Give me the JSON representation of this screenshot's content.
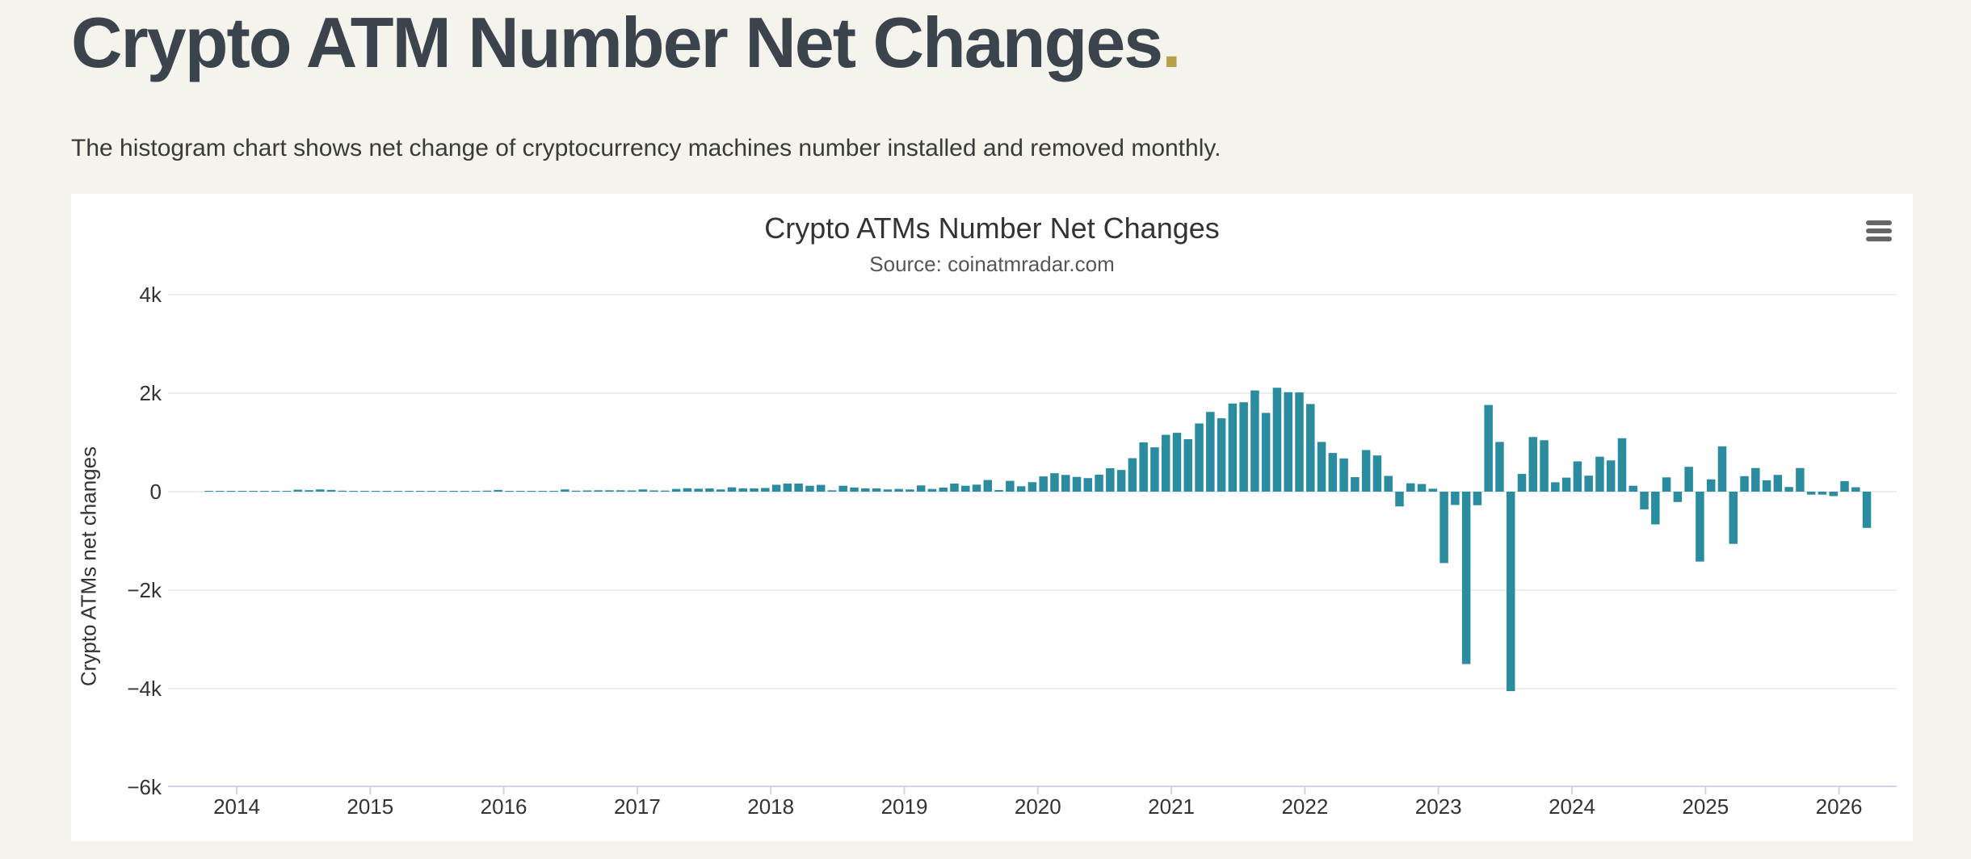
{
  "page": {
    "title": "Crypto ATM Number Net Changes",
    "title_accent_dot": ".",
    "description": "The histogram chart shows net change of cryptocurrency machines number installed and removed monthly."
  },
  "chart": {
    "title": "Crypto ATMs Number Net Changes",
    "subtitle": "Source: coinatmradar.com",
    "y_axis_title": "Crypto ATMs net changes",
    "menu_icon": "hamburger-icon",
    "y_tick_labels": [
      "4k",
      "2k",
      "0",
      "−2k",
      "−4k",
      "−6k"
    ],
    "x_tick_labels": [
      "2014",
      "2015",
      "2016",
      "2017",
      "2018",
      "2019",
      "2020",
      "2021",
      "2022",
      "2023",
      "2024",
      "2025",
      "2026"
    ],
    "colors": {
      "bar": "#2b8ca0",
      "page_background": "#f4f3ec",
      "card_background": "#ffffff",
      "grid_line": "#e6e6e6",
      "axis_line": "#ccd6eb",
      "text": "#333333",
      "subtitle_text": "#555555",
      "title_text": "#3b434c",
      "accent_dot": "#b3a14c",
      "menu_icon": "#666666"
    }
  },
  "chart_data": {
    "type": "bar",
    "title": "Crypto ATMs Number Net Changes",
    "subtitle": "Source: coinatmradar.com",
    "xlabel": "",
    "ylabel": "Crypto ATMs net changes",
    "ylim": [
      -6000,
      4000
    ],
    "y_tick_step": 2000,
    "grid": true,
    "legend": false,
    "frequency": "monthly",
    "start_month": "2013-10",
    "end_month": "2026-03",
    "x_year_ticks": [
      2014,
      2015,
      2016,
      2017,
      2018,
      2019,
      2020,
      2021,
      2022,
      2023,
      2024,
      2025,
      2026
    ],
    "values": [
      2,
      4,
      6,
      8,
      10,
      12,
      14,
      12,
      40,
      30,
      45,
      35,
      20,
      15,
      12,
      10,
      8,
      6,
      8,
      10,
      12,
      10,
      8,
      10,
      12,
      20,
      35,
      10,
      8,
      10,
      12,
      15,
      45,
      20,
      25,
      28,
      28,
      28,
      25,
      45,
      25,
      22,
      55,
      70,
      60,
      65,
      45,
      88,
      66,
      66,
      75,
      140,
      165,
      165,
      120,
      138,
      28,
      120,
      85,
      66,
      66,
      45,
      55,
      45,
      127,
      55,
      83,
      165,
      120,
      143,
      237,
      33,
      220,
      110,
      193,
      310,
      375,
      340,
      300,
      275,
      345,
      475,
      440,
      680,
      1000,
      900,
      1155,
      1195,
      1065,
      1385,
      1620,
      1490,
      1790,
      1815,
      2055,
      1600,
      2110,
      2020,
      2015,
      1780,
      1010,
      785,
      675,
      295,
      845,
      735,
      320,
      -300,
      170,
      155,
      60,
      -1450,
      -270,
      -3500,
      -275,
      1760,
      1010,
      -4050,
      360,
      1110,
      1045,
      190,
      285,
      615,
      325,
      710,
      635,
      1085,
      120,
      -360,
      -665,
      290,
      -210,
      505,
      -1420,
      250,
      920,
      -1060,
      315,
      480,
      230,
      340,
      95,
      480,
      -60,
      -60,
      -90,
      215,
      90,
      -735
    ]
  }
}
